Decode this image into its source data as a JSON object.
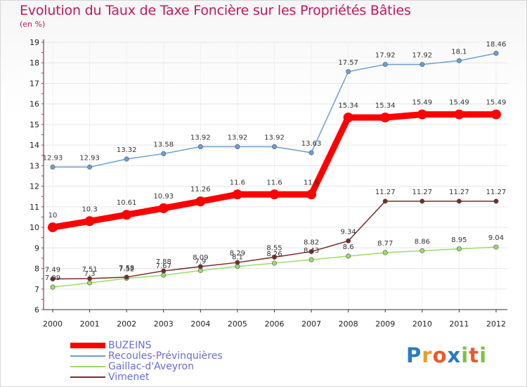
{
  "title": "Evolution du Taux de Taxe Foncière sur les Propriétés Bâties",
  "subtitle": "(en %)",
  "logo": {
    "letters": [
      "P",
      "r",
      "o",
      "x",
      "i",
      "t",
      "i"
    ],
    "colors": [
      "#2b7bbf",
      "#e8a02b",
      "#e85a2b",
      "#2b7bbf",
      "#7cc243",
      "#e85a2b",
      "#7cc243"
    ]
  },
  "chart_data": {
    "type": "line",
    "title": "Evolution du Taux de Taxe Foncière sur les Propriétés Bâties",
    "ylabel": "(en %)",
    "xlabel": "",
    "ylim": [
      6,
      19
    ],
    "yticks": [
      "6",
      "7",
      "8",
      "9",
      "10",
      "11",
      "12",
      "13",
      "14",
      "15",
      "16",
      "17",
      "18",
      "19"
    ],
    "categories": [
      "2000",
      "2001",
      "2002",
      "2003",
      "2004",
      "2005",
      "2006",
      "2007",
      "2008",
      "2009",
      "2010",
      "2011",
      "2012"
    ],
    "series": [
      {
        "name": "BUZEINS",
        "color": "#ff0000",
        "values": [
          10,
          10.3,
          10.61,
          10.93,
          11.26,
          11.6,
          11.6,
          11.6,
          15.34,
          15.34,
          15.49,
          15.49,
          15.49
        ],
        "labels": [
          "10",
          "10.3",
          "10.61",
          "10.93",
          "11.26",
          "11.6",
          "11.6",
          "11.6",
          "15.34",
          "15.34",
          "15.49",
          "15.49",
          "15.49"
        ]
      },
      {
        "name": "Recoules-Prévinquières",
        "color": "#6a9fd4",
        "values": [
          12.93,
          12.93,
          13.32,
          13.58,
          13.92,
          13.92,
          13.92,
          13.63,
          17.57,
          17.92,
          17.92,
          18.1,
          18.46
        ],
        "labels": [
          "12.93",
          "12.93",
          "13.32",
          "13.58",
          "13.92",
          "13.92",
          "13.92",
          "13.63",
          "17.57",
          "17.92",
          "17.92",
          "18.1",
          "18.46"
        ]
      },
      {
        "name": "Gaillac-d'Aveyron",
        "color": "#99dd66",
        "values": [
          7.09,
          7.3,
          7.52,
          7.67,
          7.9,
          8.1,
          8.26,
          8.43,
          8.6,
          8.77,
          8.86,
          8.95,
          9.04
        ],
        "labels": [
          "7.09",
          "7.3",
          "7.52",
          "7.67",
          "7.9",
          "8.1",
          "8.26",
          "8.43",
          "8.6",
          "8.77",
          "8.86",
          "8.95",
          "9.04"
        ]
      },
      {
        "name": "Vimenet",
        "color": "#7a2a2a",
        "values": [
          7.49,
          7.51,
          7.58,
          7.88,
          8.09,
          8.29,
          8.55,
          8.82,
          9.34,
          11.27,
          11.27,
          11.27,
          11.27
        ],
        "labels": [
          "7.49",
          "7.51",
          "7.58",
          "7.88",
          "8.09",
          "8.29",
          "8.55",
          "8.82",
          "9.34",
          "11.27",
          "11.27",
          "11.27",
          "11.27"
        ]
      }
    ],
    "legend_position": "bottom-left"
  }
}
